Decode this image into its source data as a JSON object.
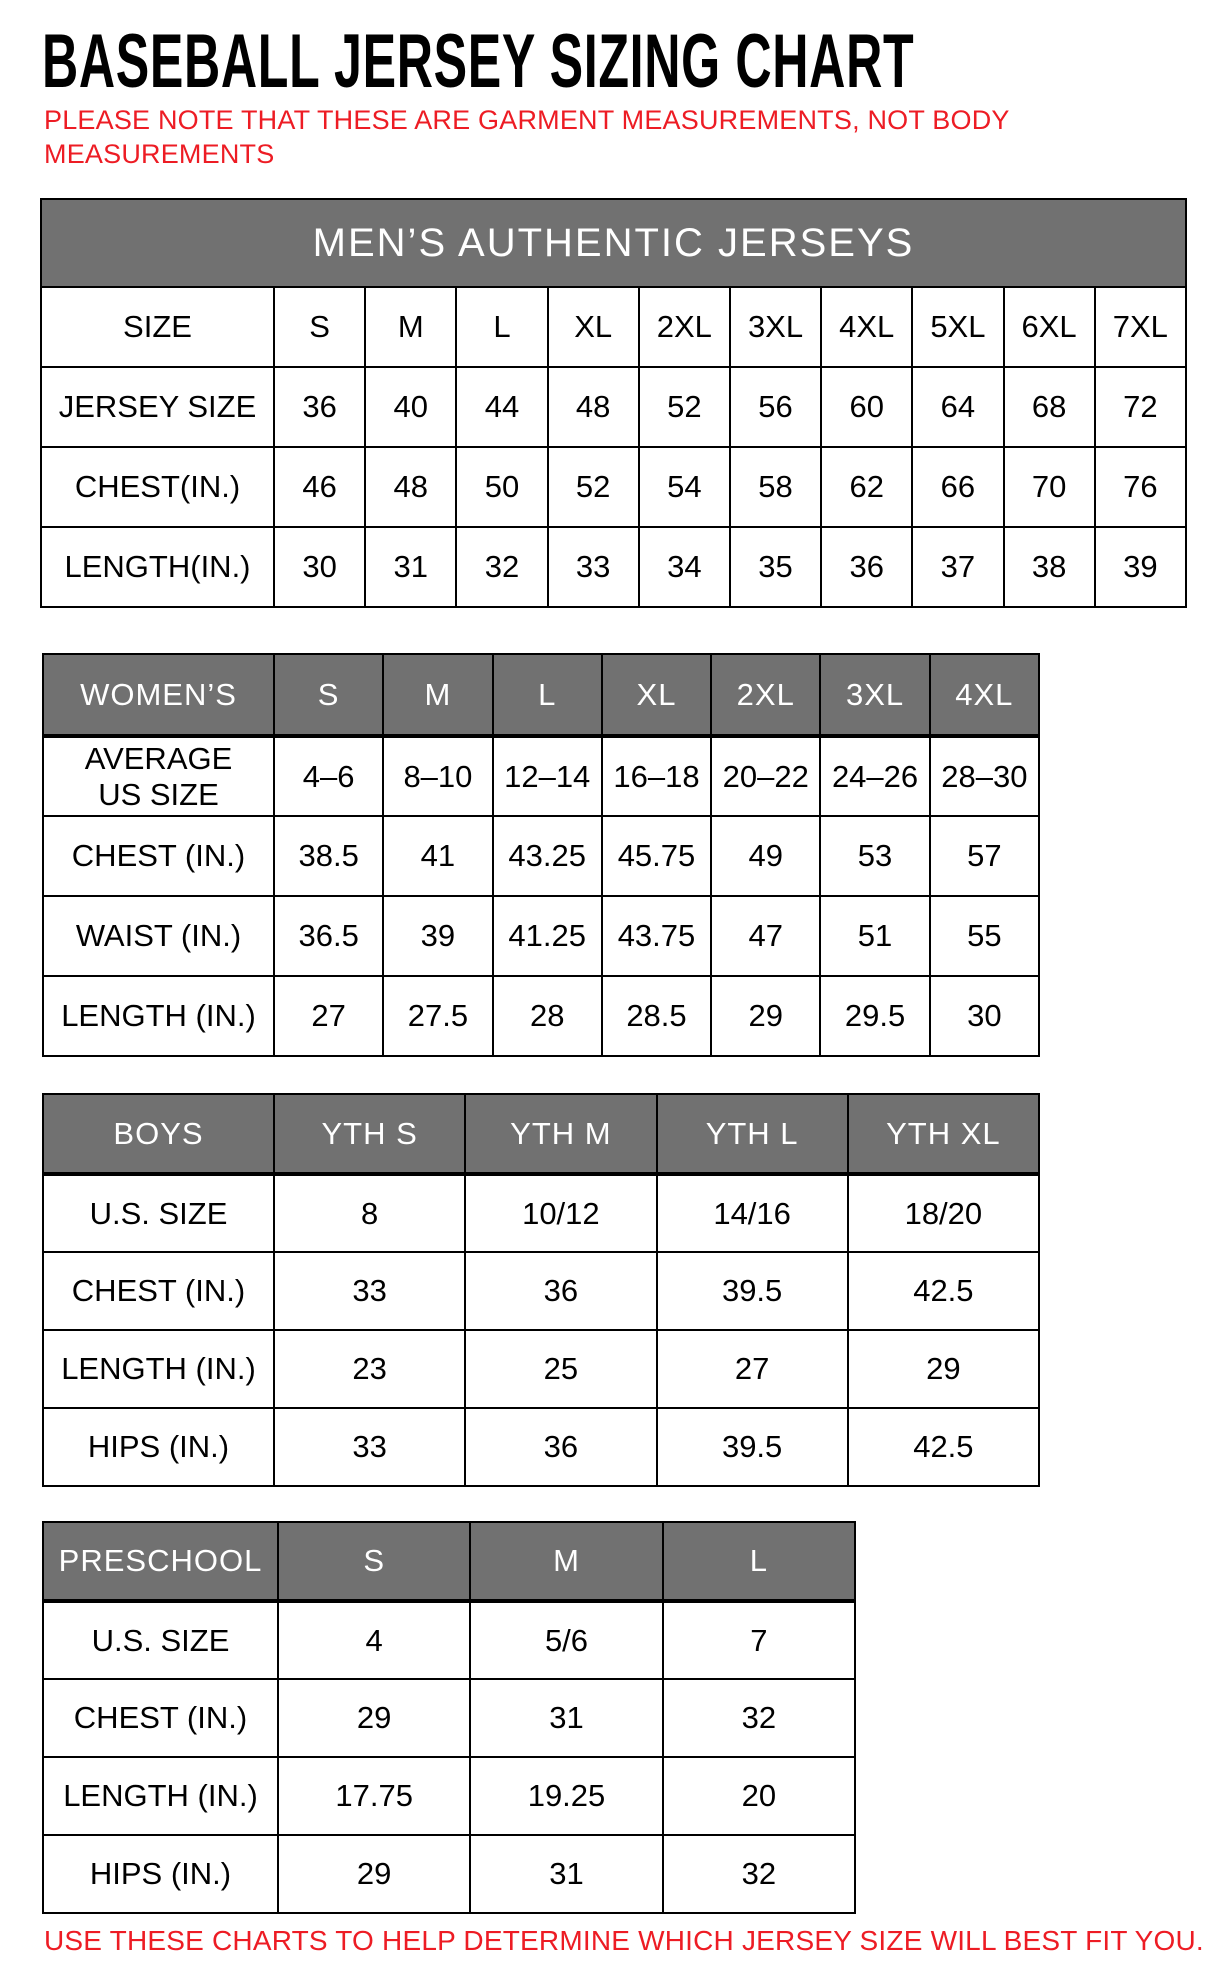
{
  "page": {
    "title": "BASEBALL JERSEY SIZING CHART",
    "note_lines": [
      "PLEASE NOTE THAT THESE ARE GARMENT MEASUREMENTS, NOT BODY",
      "MEASUREMENTS"
    ],
    "footer": "USE THESE CHARTS TO HELP DETERMINE WHICH JERSEY SIZE WILL BEST FIT YOU."
  },
  "colors": {
    "accent_red": "#ed1c24",
    "header_gray": "#717171",
    "header_text": "#ffffff",
    "border": "#000000",
    "background": "#ffffff"
  },
  "tables": [
    {
      "id": "mens",
      "banner": "MEN’S AUTHENTIC JERSEYS",
      "columns": [
        "SIZE",
        "S",
        "M",
        "L",
        "XL",
        "2XL",
        "3XL",
        "4XL",
        "5XL",
        "6XL",
        "7XL"
      ],
      "rows": [
        {
          "label": "JERSEY SIZE",
          "values": [
            "36",
            "40",
            "44",
            "48",
            "52",
            "56",
            "60",
            "64",
            "68",
            "72"
          ]
        },
        {
          "label": "CHEST(IN.)",
          "values": [
            "46",
            "48",
            "50",
            "52",
            "54",
            "58",
            "62",
            "66",
            "70",
            "76"
          ]
        },
        {
          "label": "LENGTH(IN.)",
          "values": [
            "30",
            "31",
            "32",
            "33",
            "34",
            "35",
            "36",
            "37",
            "38",
            "39"
          ]
        }
      ]
    },
    {
      "id": "womens",
      "columns": [
        "WOMEN’S",
        "S",
        "M",
        "L",
        "XL",
        "2XL",
        "3XL",
        "4XL"
      ],
      "rows": [
        {
          "label": "AVERAGE\nUS SIZE",
          "values": [
            "4–6",
            "8–10",
            "12–14",
            "16–18",
            "20–22",
            "24–26",
            "28–30"
          ]
        },
        {
          "label": "CHEST (IN.)",
          "values": [
            "38.5",
            "41",
            "43.25",
            "45.75",
            "49",
            "53",
            "57"
          ]
        },
        {
          "label": "WAIST (IN.)",
          "values": [
            "36.5",
            "39",
            "41.25",
            "43.75",
            "47",
            "51",
            "55"
          ]
        },
        {
          "label": "LENGTH (IN.)",
          "values": [
            "27",
            "27.5",
            "28",
            "28.5",
            "29",
            "29.5",
            "30"
          ]
        }
      ]
    },
    {
      "id": "boys",
      "columns": [
        "BOYS",
        "YTH S",
        "YTH M",
        "YTH L",
        "YTH XL"
      ],
      "rows": [
        {
          "label": "U.S. SIZE",
          "values": [
            "8",
            "10/12",
            "14/16",
            "18/20"
          ]
        },
        {
          "label": "CHEST (IN.)",
          "values": [
            "33",
            "36",
            "39.5",
            "42.5"
          ]
        },
        {
          "label": "LENGTH (IN.)",
          "values": [
            "23",
            "25",
            "27",
            "29"
          ]
        },
        {
          "label": "HIPS (IN.)",
          "values": [
            "33",
            "36",
            "39.5",
            "42.5"
          ]
        }
      ]
    },
    {
      "id": "preschool",
      "columns": [
        "PRESCHOOL",
        "S",
        "M",
        "L"
      ],
      "rows": [
        {
          "label": "U.S. SIZE",
          "values": [
            "4",
            "5/6",
            "7"
          ]
        },
        {
          "label": "CHEST (IN.)",
          "values": [
            "29",
            "31",
            "32"
          ]
        },
        {
          "label": "LENGTH (IN.)",
          "values": [
            "17.75",
            "19.25",
            "20"
          ]
        },
        {
          "label": "HIPS (IN.)",
          "values": [
            "29",
            "31",
            "32"
          ]
        }
      ]
    }
  ]
}
